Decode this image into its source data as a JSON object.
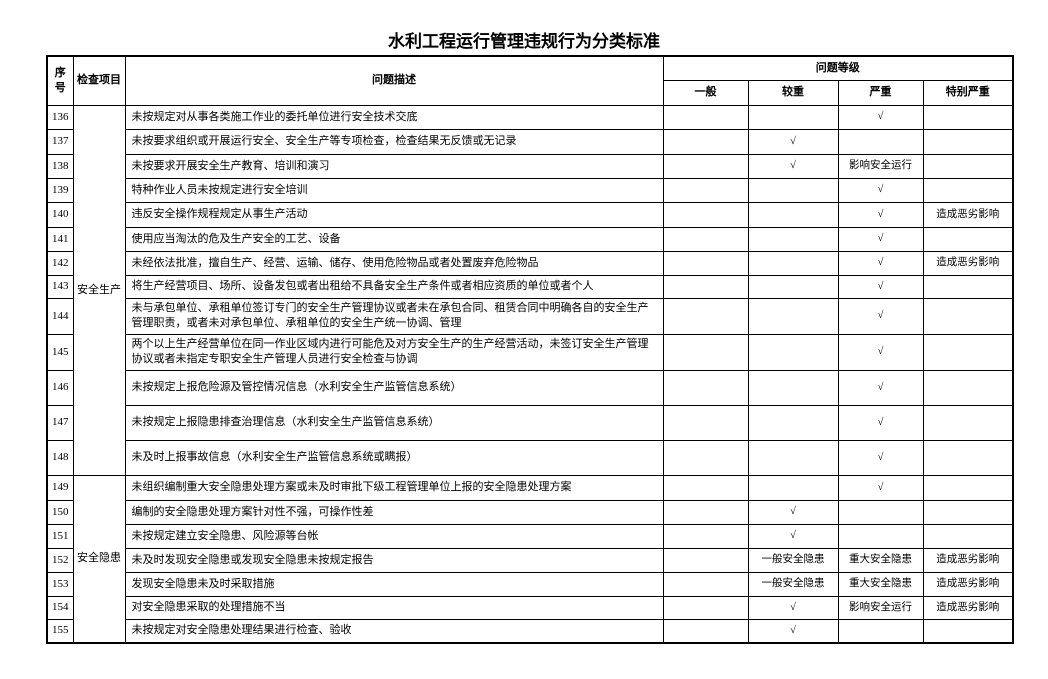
{
  "title": "水利工程运行管理违规行为分类标准",
  "table": {
    "headers": {
      "seq": "序号",
      "category": "检查项目",
      "description": "问题描述",
      "level_group": "问题等级",
      "levels": [
        "一般",
        "较重",
        "严重",
        "特别严重"
      ]
    },
    "groups": [
      {
        "label": "安全生产",
        "start": 0,
        "span": 13
      },
      {
        "label": "安全隐患",
        "start": 13,
        "span": 7
      }
    ],
    "rows": [
      {
        "seq": "136",
        "desc": "未按规定对从事各类施工作业的委托单位进行安全技术交底",
        "general": "",
        "moderate": "",
        "severe": "√",
        "extreme": ""
      },
      {
        "seq": "137",
        "desc": "未按要求组织或开展运行安全、安全生产等专项检查，检查结果无反馈或无记录",
        "general": "",
        "moderate": "√",
        "severe": "",
        "extreme": ""
      },
      {
        "seq": "138",
        "desc": "未按要求开展安全生产教育、培训和演习",
        "general": "",
        "moderate": "√",
        "severe": "影响安全运行",
        "extreme": ""
      },
      {
        "seq": "139",
        "desc": "特种作业人员未按规定进行安全培训",
        "general": "",
        "moderate": "",
        "severe": "√",
        "extreme": ""
      },
      {
        "seq": "140",
        "desc": "违反安全操作规程规定从事生产活动",
        "general": "",
        "moderate": "",
        "severe": "√",
        "extreme": "造成恶劣影响"
      },
      {
        "seq": "141",
        "desc": "使用应当淘汰的危及生产安全的工艺、设备",
        "general": "",
        "moderate": "",
        "severe": "√",
        "extreme": ""
      },
      {
        "seq": "142",
        "desc": "未经依法批准，擅自生产、经营、运输、储存、使用危险物品或者处置废弃危险物品",
        "general": "",
        "moderate": "",
        "severe": "√",
        "extreme": "造成恶劣影响"
      },
      {
        "seq": "143",
        "desc": "将生产经营项目、场所、设备发包或者出租给不具备安全生产条件或者相应资质的单位或者个人",
        "general": "",
        "moderate": "",
        "severe": "√",
        "extreme": ""
      },
      {
        "seq": "144",
        "desc": "未与承包单位、承租单位签订专门的安全生产管理协议或者未在承包合同、租赁合同中明确各自的安全生产管理职责，或者未对承包单位、承租单位的安全生产统一协调、管理",
        "general": "",
        "moderate": "",
        "severe": "√",
        "extreme": ""
      },
      {
        "seq": "145",
        "desc": "两个以上生产经营单位在同一作业区域内进行可能危及对方安全生产的生产经营活动，未签订安全生产管理协议或者未指定专职安全生产管理人员进行安全检查与协调",
        "general": "",
        "moderate": "",
        "severe": "√",
        "extreme": ""
      },
      {
        "seq": "146",
        "desc": "未按规定上报危险源及管控情况信息（水利安全生产监管信息系统）",
        "general": "",
        "moderate": "",
        "severe": "√",
        "extreme": ""
      },
      {
        "seq": "147",
        "desc": "未按规定上报隐患排查治理信息（水利安全生产监管信息系统）",
        "general": "",
        "moderate": "",
        "severe": "√",
        "extreme": ""
      },
      {
        "seq": "148",
        "desc": "未及时上报事故信息（水利安全生产监管信息系统或瞒报）",
        "general": "",
        "moderate": "",
        "severe": "√",
        "extreme": ""
      },
      {
        "seq": "149",
        "desc": "未组织编制重大安全隐患处理方案或未及时审批下级工程管理单位上报的安全隐患处理方案",
        "general": "",
        "moderate": "",
        "severe": "√",
        "extreme": ""
      },
      {
        "seq": "150",
        "desc": "编制的安全隐患处理方案针对性不强，可操作性差",
        "general": "",
        "moderate": "√",
        "severe": "",
        "extreme": ""
      },
      {
        "seq": "151",
        "desc": "未按规定建立安全隐患、风险源等台帐",
        "general": "",
        "moderate": "√",
        "severe": "",
        "extreme": ""
      },
      {
        "seq": "152",
        "desc": "未及时发现安全隐患或发现安全隐患未按规定报告",
        "general": "",
        "moderate": "一般安全隐患",
        "severe": "重大安全隐患",
        "extreme": "造成恶劣影响"
      },
      {
        "seq": "153",
        "desc": "发现安全隐患未及时采取措施",
        "general": "",
        "moderate": "一般安全隐患",
        "severe": "重大安全隐患",
        "extreme": "造成恶劣影响"
      },
      {
        "seq": "154",
        "desc": "对安全隐患采取的处理措施不当",
        "general": "",
        "moderate": "√",
        "severe": "影响安全运行",
        "extreme": "造成恶劣影响"
      },
      {
        "seq": "155",
        "desc": "未按规定对安全隐患处理结果进行检查、验收",
        "general": "",
        "moderate": "√",
        "severe": "",
        "extreme": ""
      }
    ]
  }
}
